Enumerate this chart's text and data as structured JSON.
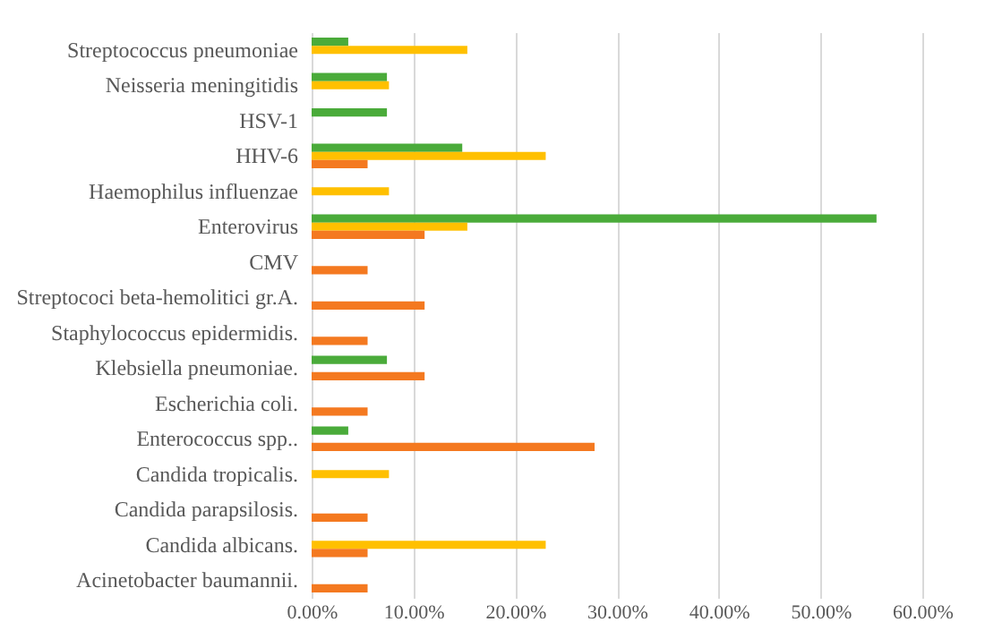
{
  "chart_data": {
    "type": "bar",
    "orientation": "horizontal",
    "categories": [
      "Streptococcus pneumoniae",
      "Neisseria meningitidis",
      "HSV-1",
      "HHV-6",
      "Haemophilus influenzae",
      "Enterovirus",
      "CMV",
      "Streptococi beta-hemolitici gr.A.",
      "Staphylococcus epidermidis.",
      "Klebsiella pneumoniae.",
      "Escherichia coli.",
      "Enterococcus spp..",
      "Candida tropicalis.",
      "Candida parapsilosis.",
      "Candida albicans.",
      "Acinetobacter baumannii."
    ],
    "series": [
      {
        "color": "#4aab3a",
        "values": [
          3.6,
          7.4,
          7.4,
          14.8,
          null,
          55.5,
          null,
          null,
          null,
          7.4,
          null,
          3.6,
          null,
          null,
          null,
          null
        ]
      },
      {
        "color": "#ffc000",
        "values": [
          15.3,
          7.6,
          null,
          23.0,
          7.6,
          15.3,
          null,
          null,
          null,
          null,
          null,
          null,
          7.6,
          null,
          23.0,
          null
        ]
      },
      {
        "color": "#f47920",
        "values": [
          null,
          null,
          null,
          5.5,
          null,
          11.1,
          5.5,
          11.1,
          5.5,
          11.1,
          5.5,
          27.8,
          null,
          5.5,
          5.5,
          5.5
        ]
      }
    ],
    "xlim": [
      0,
      60
    ],
    "xticks": [
      {
        "value": 0,
        "label": "0.00%"
      },
      {
        "value": 10,
        "label": "10.00%"
      },
      {
        "value": 20,
        "label": "20.00%"
      },
      {
        "value": 30,
        "label": "30.00%"
      },
      {
        "value": 40,
        "label": "40.00%"
      },
      {
        "value": 50,
        "label": "50.00%"
      },
      {
        "value": 60,
        "label": "60.00%"
      }
    ],
    "grid": "x",
    "legend": false
  }
}
